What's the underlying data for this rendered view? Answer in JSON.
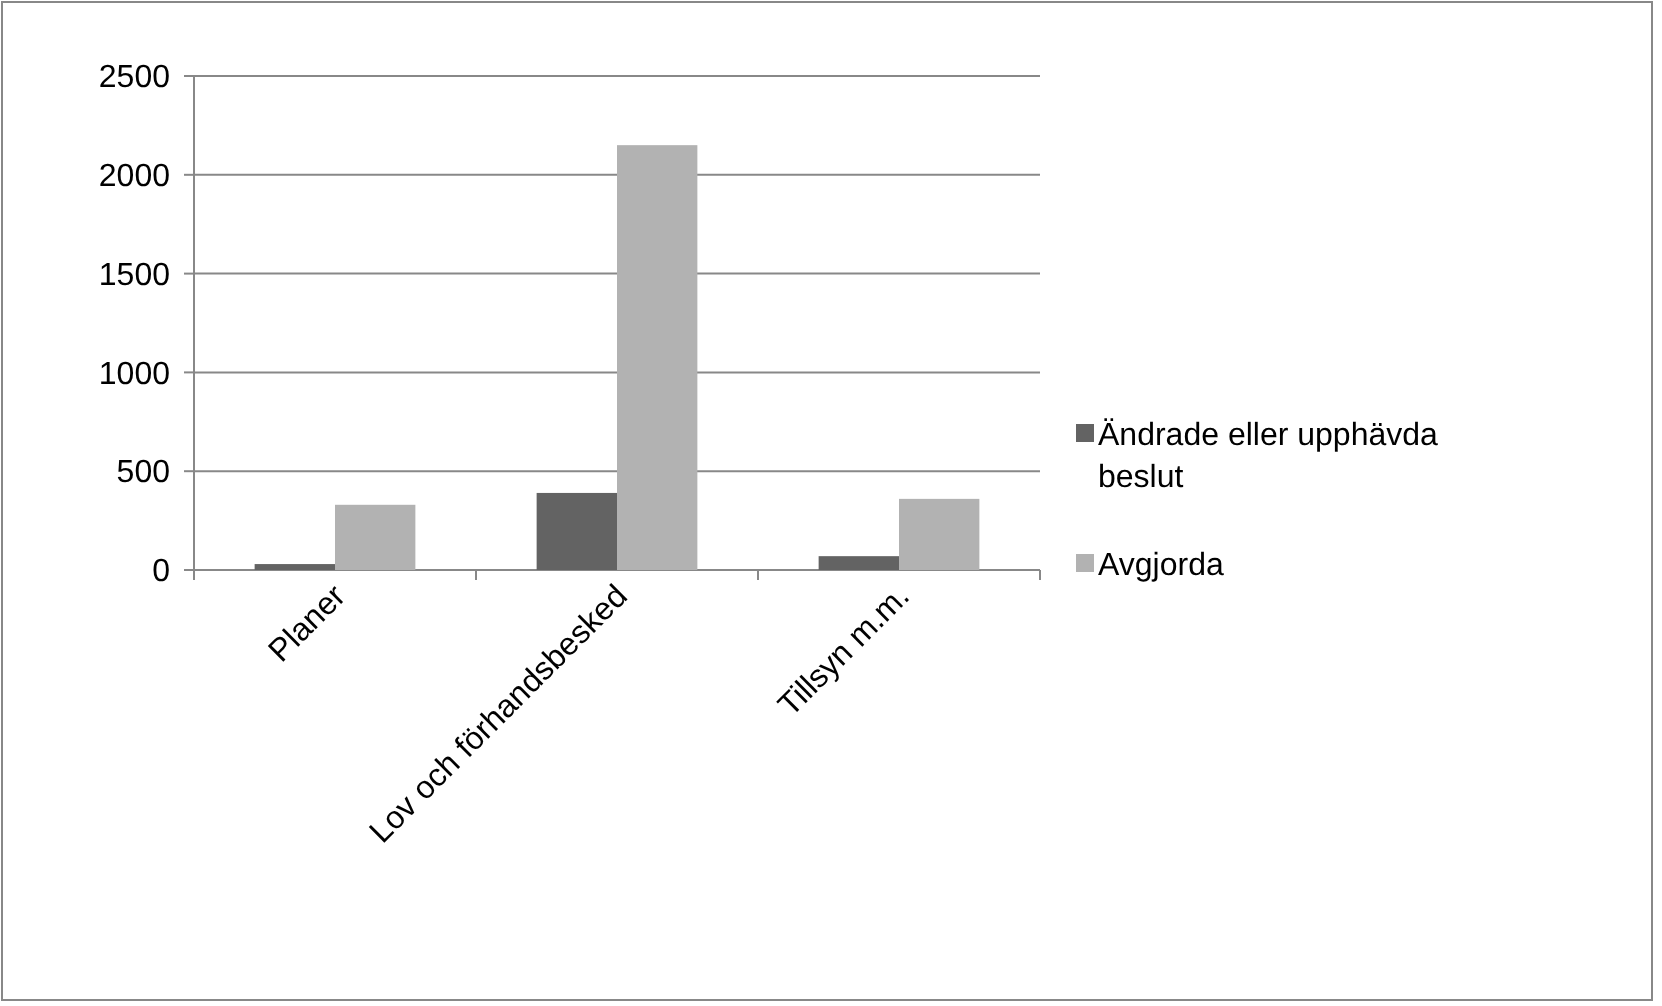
{
  "chart_data": {
    "type": "bar",
    "categories": [
      "Planer",
      "Lov och förhandsbesked",
      "Tillsyn m.m."
    ],
    "series": [
      {
        "name": "Ändrade eller upphävda beslut",
        "color": "#636363",
        "values": [
          30,
          390,
          70
        ]
      },
      {
        "name": "Avgjorda",
        "color": "#b2b2b2",
        "values": [
          330,
          2150,
          360
        ]
      }
    ],
    "ylim": [
      0,
      2500
    ],
    "yticks": [
      0,
      500,
      1000,
      1500,
      2000,
      2500
    ],
    "grid": "y",
    "legend": "right"
  }
}
